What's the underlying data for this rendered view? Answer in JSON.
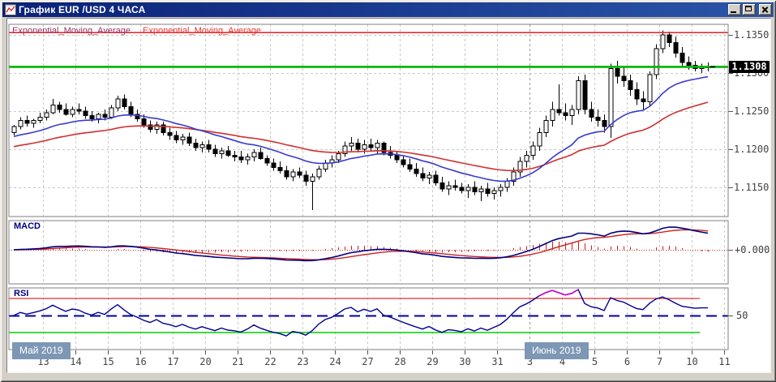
{
  "window": {
    "title": "График EUR /USD  4 ЧАСА",
    "controls": [
      "minimize",
      "maximize",
      "close"
    ]
  },
  "colors": {
    "titlebar_from": "#0a2178",
    "titlebar_to": "#2a55a8",
    "candle_up": "#ffffff",
    "candle_down": "#000000",
    "candle_border": "#000000",
    "ema_fast": "#3a3acc",
    "ema_slow": "#d03030",
    "ema_label_1": "#993366",
    "ema_label_2": "#ee3333",
    "resistance_line": "#e03030",
    "price_line": "#00b400",
    "price_tag_bg": "#000000",
    "price_tag_text": "#ffffff",
    "macd_line": "#000080",
    "macd_signal": "#cc2222",
    "macd_hist": "#cc2222",
    "macd_zero": "#d03030",
    "rsi_line": "#000090",
    "rsi_overbought_line": "#e03030",
    "rsi_oversold_line": "#00d000",
    "rsi_midline": "#0000a0",
    "rsi_hot": "#cc00cc",
    "grid": "#c9c9c9",
    "grid_month": "#9a9a9a",
    "axis_text": "#444444",
    "indicator_label": "#000080",
    "month_box_bg": "#7d97b5",
    "month_box_text": "#ffffff"
  },
  "chart_data": {
    "type": "candlestick",
    "symbol": "EUR/USD",
    "timeframe": "4H",
    "panels": [
      "price",
      "MACD",
      "RSI"
    ],
    "x_labels": [
      "13",
      "14",
      "15",
      "16",
      "17",
      "20",
      "21",
      "22",
      "23",
      "24",
      "27",
      "28",
      "29",
      "30",
      "31",
      "3",
      "4",
      "5",
      "6",
      "7",
      "10",
      "11"
    ],
    "month_labels": [
      {
        "label": "Май 2019",
        "day_index": 0
      },
      {
        "label": "Июнь 2019",
        "day_index": 15
      }
    ],
    "y_axis": {
      "ticks": [
        "1.1350",
        "1.1300",
        "1.1250",
        "1.1200",
        "1.1150"
      ],
      "values": [
        1.135,
        1.13,
        1.125,
        1.12,
        1.115
      ],
      "current_price": "1.1308"
    },
    "overlays": {
      "ema_labels": [
        "Exponential_Moving_Average",
        "Exponential_Moving_Average"
      ],
      "ema_fast_period": 18,
      "ema_slow_period": 40,
      "resistance_price": 1.1353,
      "current_price": 1.1308
    },
    "macd": {
      "label": "MACD",
      "zero_label": "+0.000",
      "params": {
        "fast": 12,
        "slow": 26,
        "signal": 9
      }
    },
    "rsi": {
      "label": "RSI",
      "period": 14,
      "overbought": 70,
      "midline": 50,
      "oversold": 30,
      "level_label": "50"
    },
    "candles_ohlc": [
      [
        1.1222,
        1.1232,
        1.1218,
        1.123
      ],
      [
        1.123,
        1.1242,
        1.1226,
        1.1238
      ],
      [
        1.1238,
        1.1244,
        1.123,
        1.1234
      ],
      [
        1.1234,
        1.124,
        1.1228,
        1.1238
      ],
      [
        1.1238,
        1.1248,
        1.1234,
        1.1242
      ],
      [
        1.1242,
        1.1252,
        1.1238,
        1.1248
      ],
      [
        1.1248,
        1.1266,
        1.1246,
        1.1258
      ],
      [
        1.1258,
        1.1262,
        1.1248,
        1.1252
      ],
      [
        1.1252,
        1.126,
        1.1244,
        1.1246
      ],
      [
        1.1246,
        1.1256,
        1.1242,
        1.1252
      ],
      [
        1.1252,
        1.126,
        1.1246,
        1.125
      ],
      [
        1.125,
        1.1256,
        1.124,
        1.1244
      ],
      [
        1.1244,
        1.125,
        1.1236,
        1.124
      ],
      [
        1.124,
        1.1248,
        1.1234,
        1.1246
      ],
      [
        1.1246,
        1.1252,
        1.1238,
        1.1242
      ],
      [
        1.1242,
        1.1258,
        1.124,
        1.1254
      ],
      [
        1.1254,
        1.127,
        1.125,
        1.1266
      ],
      [
        1.1266,
        1.1272,
        1.1252,
        1.1256
      ],
      [
        1.1256,
        1.1262,
        1.1242,
        1.1246
      ],
      [
        1.1246,
        1.1252,
        1.1236,
        1.124
      ],
      [
        1.124,
        1.1246,
        1.1228,
        1.1232
      ],
      [
        1.1232,
        1.1238,
        1.1222,
        1.1226
      ],
      [
        1.1226,
        1.1236,
        1.122,
        1.1232
      ],
      [
        1.1232,
        1.1236,
        1.1218,
        1.1222
      ],
      [
        1.1222,
        1.1228,
        1.1212,
        1.1218
      ],
      [
        1.1218,
        1.1224,
        1.1208,
        1.1212
      ],
      [
        1.1212,
        1.122,
        1.1206,
        1.1216
      ],
      [
        1.1216,
        1.1222,
        1.1204,
        1.1208
      ],
      [
        1.1208,
        1.1214,
        1.1198,
        1.1202
      ],
      [
        1.1202,
        1.121,
        1.1196,
        1.1206
      ],
      [
        1.1206,
        1.1212,
        1.1196,
        1.12
      ],
      [
        1.12,
        1.1206,
        1.119,
        1.1194
      ],
      [
        1.1194,
        1.1202,
        1.1188,
        1.1198
      ],
      [
        1.1198,
        1.1204,
        1.119,
        1.1192
      ],
      [
        1.1192,
        1.1198,
        1.1184,
        1.119
      ],
      [
        1.119,
        1.1198,
        1.1182,
        1.1186
      ],
      [
        1.1186,
        1.1194,
        1.118,
        1.119
      ],
      [
        1.119,
        1.12,
        1.1184,
        1.1196
      ],
      [
        1.1196,
        1.1202,
        1.1186,
        1.1188
      ],
      [
        1.1188,
        1.1192,
        1.1178,
        1.1182
      ],
      [
        1.1182,
        1.1188,
        1.1172,
        1.1176
      ],
      [
        1.1176,
        1.1184,
        1.1168,
        1.1172
      ],
      [
        1.1172,
        1.1178,
        1.116,
        1.1164
      ],
      [
        1.1164,
        1.1174,
        1.1158,
        1.117
      ],
      [
        1.117,
        1.1176,
        1.1162,
        1.1166
      ],
      [
        1.1166,
        1.1172,
        1.1152,
        1.1158
      ],
      [
        1.1158,
        1.1168,
        1.112,
        1.1164
      ],
      [
        1.1164,
        1.1178,
        1.116,
        1.1174
      ],
      [
        1.1174,
        1.1186,
        1.117,
        1.1182
      ],
      [
        1.1182,
        1.1192,
        1.1176,
        1.1186
      ],
      [
        1.1186,
        1.1198,
        1.1182,
        1.1194
      ],
      [
        1.1194,
        1.121,
        1.119,
        1.1204
      ],
      [
        1.1204,
        1.1216,
        1.1198,
        1.1208
      ],
      [
        1.1208,
        1.1214,
        1.1196,
        1.12
      ],
      [
        1.12,
        1.1212,
        1.1194,
        1.1206
      ],
      [
        1.1206,
        1.1214,
        1.1198,
        1.1202
      ],
      [
        1.1202,
        1.1212,
        1.1194,
        1.1208
      ],
      [
        1.1208,
        1.121,
        1.1192,
        1.1196
      ],
      [
        1.1196,
        1.1204,
        1.1188,
        1.1192
      ],
      [
        1.1192,
        1.1198,
        1.1182,
        1.1186
      ],
      [
        1.1186,
        1.1192,
        1.1176,
        1.118
      ],
      [
        1.118,
        1.1188,
        1.117,
        1.1174
      ],
      [
        1.1174,
        1.1182,
        1.1164,
        1.1168
      ],
      [
        1.1168,
        1.1176,
        1.1158,
        1.1162
      ],
      [
        1.1162,
        1.117,
        1.1154,
        1.1166
      ],
      [
        1.1166,
        1.1172,
        1.1152,
        1.1156
      ],
      [
        1.1156,
        1.1164,
        1.1144,
        1.1148
      ],
      [
        1.1148,
        1.1158,
        1.114,
        1.1152
      ],
      [
        1.1152,
        1.116,
        1.1146,
        1.115
      ],
      [
        1.115,
        1.1156,
        1.1142,
        1.1146
      ],
      [
        1.1146,
        1.1154,
        1.1136,
        1.115
      ],
      [
        1.115,
        1.1158,
        1.114,
        1.1144
      ],
      [
        1.1144,
        1.1152,
        1.1132,
        1.1148
      ],
      [
        1.1148,
        1.1156,
        1.1138,
        1.1142
      ],
      [
        1.1142,
        1.115,
        1.1134,
        1.1146
      ],
      [
        1.1146,
        1.1154,
        1.1138,
        1.115
      ],
      [
        1.115,
        1.1162,
        1.1144,
        1.1158
      ],
      [
        1.1158,
        1.1176,
        1.1152,
        1.117
      ],
      [
        1.117,
        1.119,
        1.1164,
        1.1184
      ],
      [
        1.1184,
        1.1198,
        1.1176,
        1.1192
      ],
      [
        1.1192,
        1.121,
        1.1186,
        1.1204
      ],
      [
        1.1204,
        1.1228,
        1.1198,
        1.1222
      ],
      [
        1.1222,
        1.1244,
        1.1216,
        1.1238
      ],
      [
        1.1238,
        1.1262,
        1.123,
        1.1252
      ],
      [
        1.1252,
        1.1285,
        1.1244,
        1.1248
      ],
      [
        1.1248,
        1.126,
        1.1238,
        1.1244
      ],
      [
        1.1244,
        1.1258,
        1.1232,
        1.1252
      ],
      [
        1.1252,
        1.1296,
        1.1246,
        1.129
      ],
      [
        1.129,
        1.1298,
        1.1246,
        1.1252
      ],
      [
        1.1252,
        1.1262,
        1.1236,
        1.1242
      ],
      [
        1.1242,
        1.1252,
        1.123,
        1.1238
      ],
      [
        1.1238,
        1.1246,
        1.1222,
        1.123
      ],
      [
        1.123,
        1.1312,
        1.1215,
        1.1306
      ],
      [
        1.1306,
        1.1316,
        1.1286,
        1.1296
      ],
      [
        1.1296,
        1.1308,
        1.1282,
        1.129
      ],
      [
        1.129,
        1.1298,
        1.127,
        1.1278
      ],
      [
        1.1278,
        1.1288,
        1.1258,
        1.1266
      ],
      [
        1.1266,
        1.1276,
        1.1252,
        1.1262
      ],
      [
        1.1262,
        1.1302,
        1.1256,
        1.1298
      ],
      [
        1.1298,
        1.1338,
        1.1292,
        1.1332
      ],
      [
        1.1332,
        1.1356,
        1.1326,
        1.135
      ],
      [
        1.135,
        1.1354,
        1.1334,
        1.134
      ],
      [
        1.134,
        1.1348,
        1.132,
        1.1326
      ],
      [
        1.1326,
        1.1334,
        1.1308,
        1.1314
      ],
      [
        1.1314,
        1.1322,
        1.1304,
        1.131
      ],
      [
        1.131,
        1.1316,
        1.1302,
        1.1306
      ],
      [
        1.1306,
        1.1312,
        1.13,
        1.1308
      ],
      [
        1.1308,
        1.1314,
        1.1302,
        1.1308
      ]
    ]
  }
}
